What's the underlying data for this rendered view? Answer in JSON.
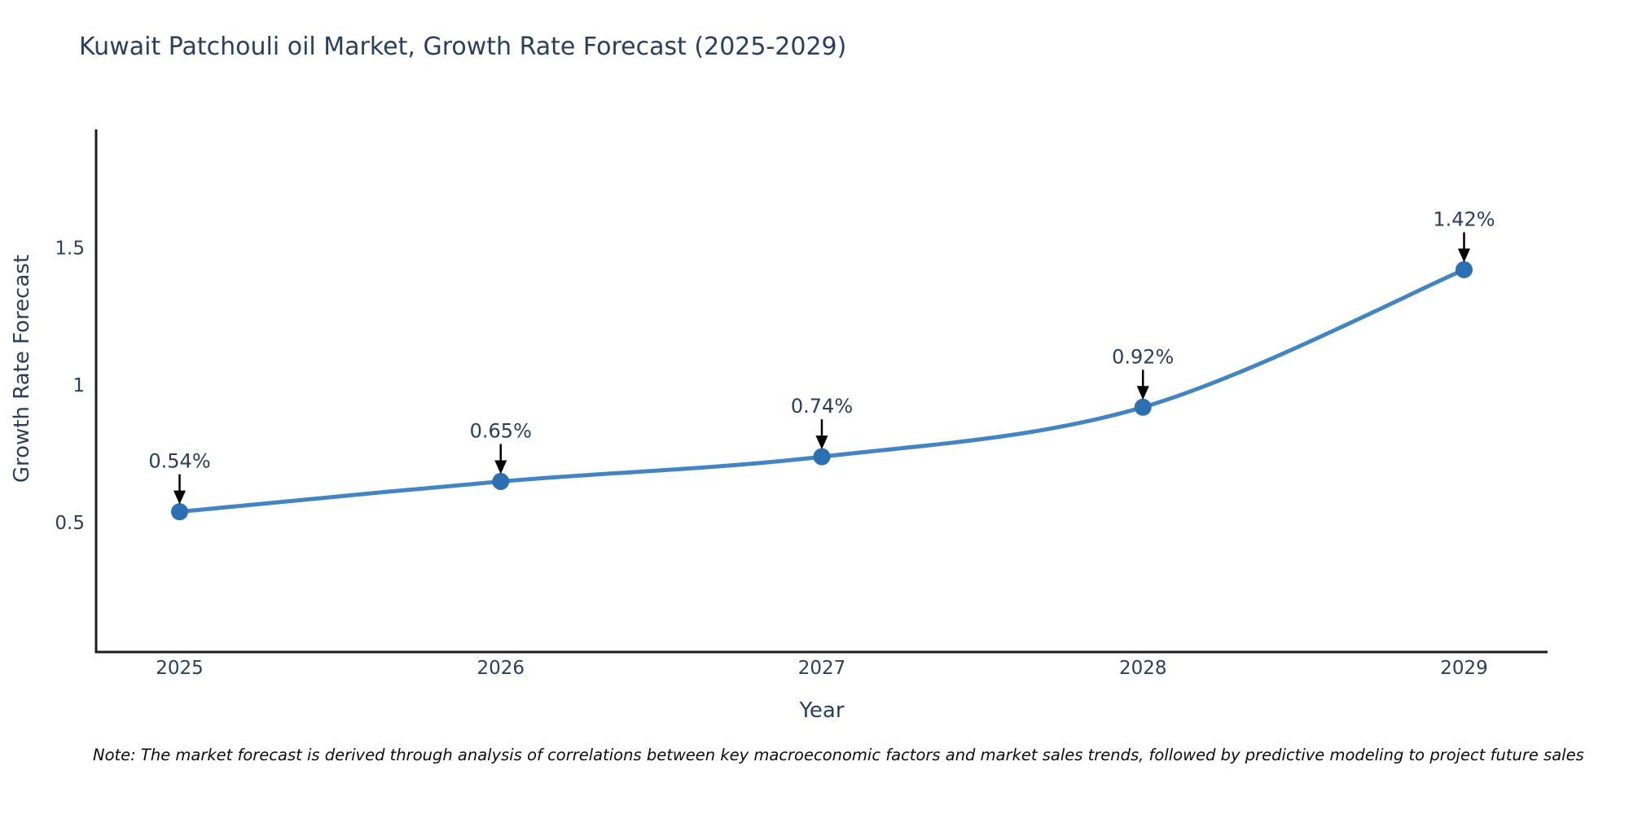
{
  "title": "Kuwait Patchouli oil Market, Growth Rate Forecast (2025-2029)",
  "footnote": "Note: The market forecast is derived through analysis of correlations between key macroeconomic factors and market sales trends, followed by predictive modeling to project future sales",
  "colors": {
    "line": "#4285c2",
    "marker": "#2c70b4",
    "text": "#2a3f5f",
    "axis": "#1c1c1c",
    "arrow": "#000000",
    "background": "#ffffff"
  },
  "chart_data": {
    "type": "line",
    "title": "Kuwait Patchouli oil Market, Growth Rate Forecast (2025-2029)",
    "xlabel": "Year",
    "ylabel": "Growth Rate Forecast",
    "x": [
      2025,
      2026,
      2027,
      2028,
      2029
    ],
    "y": [
      0.54,
      0.65,
      0.74,
      0.92,
      1.42
    ],
    "point_labels": [
      "0.54%",
      "0.65%",
      "0.74%",
      "0.92%",
      "1.42%"
    ],
    "series_name": "Growth Rate Forecast",
    "line_shape": "spline",
    "markers": true,
    "annotations_arrows": true,
    "xticks": [
      2025,
      2026,
      2027,
      2028,
      2029
    ],
    "yticks": [
      0.5,
      1,
      1.5
    ],
    "xlim": [
      2024.74,
      2029.26
    ],
    "ylim": [
      0.03,
      1.93
    ],
    "grid": false,
    "legend": "none"
  }
}
